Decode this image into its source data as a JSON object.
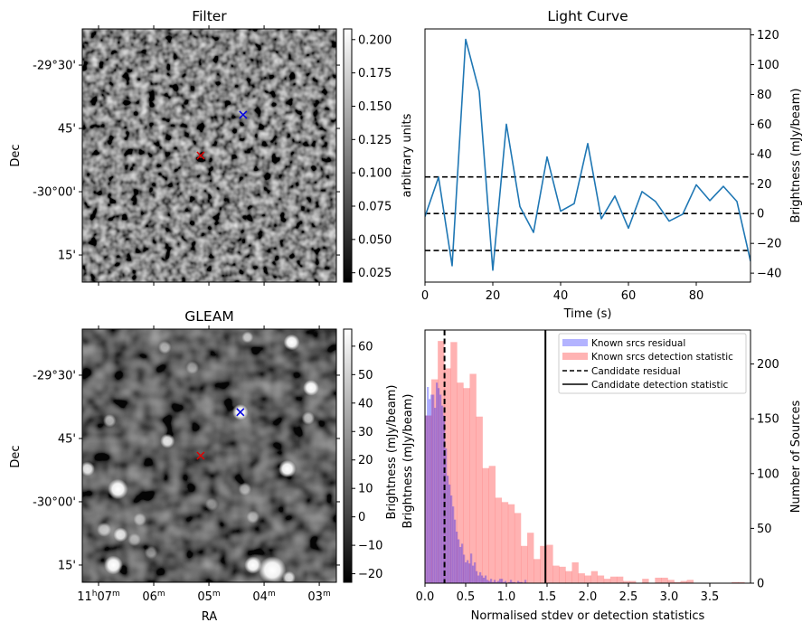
{
  "figure": {
    "panels": {
      "filter": {
        "title": "Filter",
        "ylabel": "Dec",
        "dec_ticks": [
          {
            "value": -29.5,
            "label": "-29°30'"
          },
          {
            "value": -29.75,
            "label": "45'"
          },
          {
            "value": -30.0,
            "label": "-30°00'"
          },
          {
            "value": -30.25,
            "label": "15'"
          }
        ],
        "dec_range": [
          -29.357,
          -30.357
        ],
        "ra_range_min": [
          7.295,
          2.69
        ],
        "ra_tick_minutes": [
          7,
          6,
          5,
          4,
          3
        ],
        "colorbar": {
          "label": "arbitrary units",
          "range": [
            0.018,
            0.208
          ],
          "ticks": [
            "0.025",
            "0.050",
            "0.075",
            "0.100",
            "0.125",
            "0.150",
            "0.175",
            "0.200"
          ],
          "tick_values": [
            0.025,
            0.05,
            0.075,
            0.1,
            0.125,
            0.15,
            0.175,
            0.2
          ]
        },
        "markers": [
          {
            "name": "candidate",
            "color": "#e00000",
            "ra_min": 5.15,
            "dec": -29.857
          },
          {
            "name": "reference",
            "color": "#0000e0",
            "ra_min": 4.38,
            "dec": -29.696
          }
        ]
      },
      "gleam": {
        "title": "GLEAM",
        "ylabel": "Dec",
        "xlabel": "RA",
        "dec_ticks": [
          {
            "value": -29.5,
            "label": "-29°30'"
          },
          {
            "value": -29.75,
            "label": "45'"
          },
          {
            "value": -30.0,
            "label": "-30°00'"
          },
          {
            "value": -30.25,
            "label": "15'"
          }
        ],
        "dec_range": [
          -29.318,
          -30.318
        ],
        "ra_range_min": [
          7.295,
          2.69
        ],
        "ra_ticks": [
          {
            "minute": 7,
            "label_main": "11",
            "label_h": "h",
            "label_min": "07",
            "label_m": "m"
          },
          {
            "minute": 6,
            "label_main": "",
            "label_h": "",
            "label_min": "06",
            "label_m": "m"
          },
          {
            "minute": 5,
            "label_main": "",
            "label_h": "",
            "label_min": "05",
            "label_m": "m"
          },
          {
            "minute": 4,
            "label_main": "",
            "label_h": "",
            "label_min": "04",
            "label_m": "m"
          },
          {
            "minute": 3,
            "label_main": "",
            "label_h": "",
            "label_min": "03",
            "label_m": "m"
          }
        ],
        "colorbar": {
          "label": "Brightness (mJy/beam)",
          "range": [
            -23,
            66
          ],
          "ticks": [
            "−20",
            "−10",
            "0",
            "10",
            "20",
            "30",
            "40",
            "50",
            "60"
          ],
          "tick_values": [
            -20,
            -10,
            0,
            10,
            20,
            30,
            40,
            50,
            60
          ]
        },
        "markers": [
          {
            "name": "candidate",
            "color": "#e00000",
            "ra_min": 5.15,
            "dec": -29.818
          },
          {
            "name": "reference",
            "color": "#0000e0",
            "ra_min": 4.43,
            "dec": -29.646
          }
        ],
        "sources": [
          {
            "ra_min": 6.8,
            "dec": -29.68,
            "r": 0.9,
            "b": 0.6
          },
          {
            "ra_min": 5.8,
            "dec": -29.39,
            "r": 0.9,
            "b": 0.55
          },
          {
            "ra_min": 5.3,
            "dec": -29.47,
            "r": 0.9,
            "b": 0.45
          },
          {
            "ra_min": 4.3,
            "dec": -29.35,
            "r": 0.8,
            "b": 0.6
          },
          {
            "ra_min": 3.5,
            "dec": -29.37,
            "r": 1.1,
            "b": 1.0
          },
          {
            "ra_min": 3.15,
            "dec": -29.55,
            "r": 1.1,
            "b": 1.0
          },
          {
            "ra_min": 3.2,
            "dec": -29.67,
            "r": 0.9,
            "b": 0.6
          },
          {
            "ra_min": 4.43,
            "dec": -29.646,
            "r": 1.1,
            "b": 1.0
          },
          {
            "ra_min": 5.75,
            "dec": -29.76,
            "r": 1.0,
            "b": 0.85
          },
          {
            "ra_min": 3.58,
            "dec": -29.87,
            "r": 1.2,
            "b": 1.0
          },
          {
            "ra_min": 7.2,
            "dec": -29.87,
            "r": 1.0,
            "b": 0.85
          },
          {
            "ra_min": 6.65,
            "dec": -29.95,
            "r": 1.4,
            "b": 1.0
          },
          {
            "ra_min": 4.35,
            "dec": -29.95,
            "r": 0.9,
            "b": 0.5
          },
          {
            "ra_min": 4.95,
            "dec": -30.01,
            "r": 0.9,
            "b": 0.35
          },
          {
            "ra_min": 4.2,
            "dec": -30.06,
            "r": 0.9,
            "b": 0.5
          },
          {
            "ra_min": 6.25,
            "dec": -30.07,
            "r": 0.9,
            "b": 0.5
          },
          {
            "ra_min": 6.9,
            "dec": -30.11,
            "r": 1.0,
            "b": 0.6
          },
          {
            "ra_min": 6.6,
            "dec": -30.13,
            "r": 1.0,
            "b": 0.85
          },
          {
            "ra_min": 6.35,
            "dec": -30.15,
            "r": 0.9,
            "b": 0.45
          },
          {
            "ra_min": 6.05,
            "dec": -30.2,
            "r": 0.9,
            "b": 0.4
          },
          {
            "ra_min": 6.73,
            "dec": -30.25,
            "r": 1.3,
            "b": 1.0
          },
          {
            "ra_min": 4.2,
            "dec": -30.25,
            "r": 1.2,
            "b": 1.0
          },
          {
            "ra_min": 3.85,
            "dec": -30.27,
            "r": 1.9,
            "b": 1.0
          },
          {
            "ra_min": 3.55,
            "dec": -30.3,
            "r": 0.9,
            "b": 0.8
          }
        ]
      }
    }
  },
  "chart_data": [
    {
      "type": "line",
      "title": "Light Curve",
      "xlabel": "Time (s)",
      "ylabel": "Brightness (mJy/beam)",
      "xlim": [
        0,
        96
      ],
      "ylim": [
        -46,
        124
      ],
      "xticks": [
        0,
        20,
        40,
        60,
        80
      ],
      "yticks": [
        -40,
        -20,
        0,
        20,
        40,
        60,
        80,
        100,
        120
      ],
      "ytick_labels": [
        "−40",
        "−20",
        "0",
        "20",
        "40",
        "60",
        "80",
        "100",
        "120"
      ],
      "series": [
        {
          "name": "light curve",
          "color": "#1f77b4",
          "x": [
            0,
            4,
            8,
            12,
            16,
            20,
            24,
            28,
            32,
            36,
            40,
            44,
            48,
            52,
            56,
            60,
            64,
            68,
            72,
            76,
            80,
            84,
            88,
            92,
            96
          ],
          "y": [
            -2,
            24.4,
            -35,
            117,
            82,
            -38,
            60,
            4.7,
            -12.6,
            38,
            1.6,
            6.7,
            47,
            -3.5,
            11.8,
            -9.8,
            14.8,
            8.1,
            -5.1,
            -0.4,
            19.3,
            8.7,
            18.3,
            8.1,
            -32
          ]
        }
      ],
      "hlines": [
        {
          "y": 24.6,
          "style": "dashed",
          "color": "#000000"
        },
        {
          "y": 0,
          "style": "dashed",
          "color": "#000000"
        },
        {
          "y": -24.8,
          "style": "dashed",
          "color": "#000000"
        }
      ],
      "grid": false
    },
    {
      "type": "bar",
      "subtype": "histogram",
      "title": "",
      "xlabel": "Normalised stdev or detection statistics",
      "ylabel_left": "Brightness (mJy/beam)",
      "ylabel": "Number of Sources",
      "xlim": [
        0,
        4.0
      ],
      "ylim": [
        0,
        231
      ],
      "xticks": [
        0.0,
        0.5,
        1.0,
        1.5,
        2.0,
        2.5,
        3.0,
        3.5
      ],
      "xtick_labels": [
        "0.0",
        "0.5",
        "1.0",
        "1.5",
        "2.0",
        "2.5",
        "3.0",
        "3.5"
      ],
      "yticks": [
        0,
        50,
        100,
        150,
        200
      ],
      "legend_position": "upper-right",
      "series": [
        {
          "name": "Known srcs residual",
          "color": "#0000ff",
          "alpha": 0.3,
          "bin_start": 0.0,
          "bin_width": 0.0222,
          "counts": [
            153,
            179,
            168,
            172,
            172,
            160,
            183,
            178,
            172,
            162,
            153,
            123,
            98,
            90,
            80,
            70,
            58,
            47,
            40,
            33,
            36,
            26,
            19,
            21,
            18,
            27,
            16,
            19,
            11,
            7,
            10,
            7,
            5,
            7,
            3,
            2,
            4,
            1,
            3,
            1,
            2,
            4,
            4,
            1,
            2,
            0,
            1,
            3,
            1,
            1,
            0,
            2,
            1,
            1,
            0,
            3
          ]
        },
        {
          "name": "Known srcs detection statistic",
          "color": "#ff0000",
          "alpha": 0.3,
          "bin_start": 0.0,
          "bin_width": 0.0785,
          "counts": [
            153,
            186,
            221,
            196,
            220,
            183,
            178,
            191,
            152,
            105,
            107,
            78,
            74,
            72,
            64,
            34,
            46,
            22,
            34,
            35,
            16,
            15,
            11,
            19,
            9,
            7,
            11,
            7,
            4,
            6,
            6,
            2,
            2,
            0,
            4,
            0,
            5,
            5,
            3,
            1,
            2,
            3,
            0,
            0,
            0,
            0,
            0,
            0,
            1,
            1
          ]
        }
      ],
      "vlines": [
        {
          "name": "Candidate residual",
          "x": 0.24,
          "style": "dashed",
          "color": "#000000"
        },
        {
          "name": "Candidate detection statistic",
          "x": 1.48,
          "style": "solid",
          "color": "#000000"
        }
      ],
      "legend": [
        {
          "label": "Known srcs residual",
          "kind": "patch",
          "color": "#b3b3ff"
        },
        {
          "label": "Known srcs detection statistic",
          "kind": "patch",
          "color": "#ffb3b3"
        },
        {
          "label": "Candidate residual",
          "kind": "dashed",
          "color": "#000000"
        },
        {
          "label": "Candidate detection statistic",
          "kind": "solid",
          "color": "#000000"
        }
      ],
      "grid": false
    }
  ]
}
